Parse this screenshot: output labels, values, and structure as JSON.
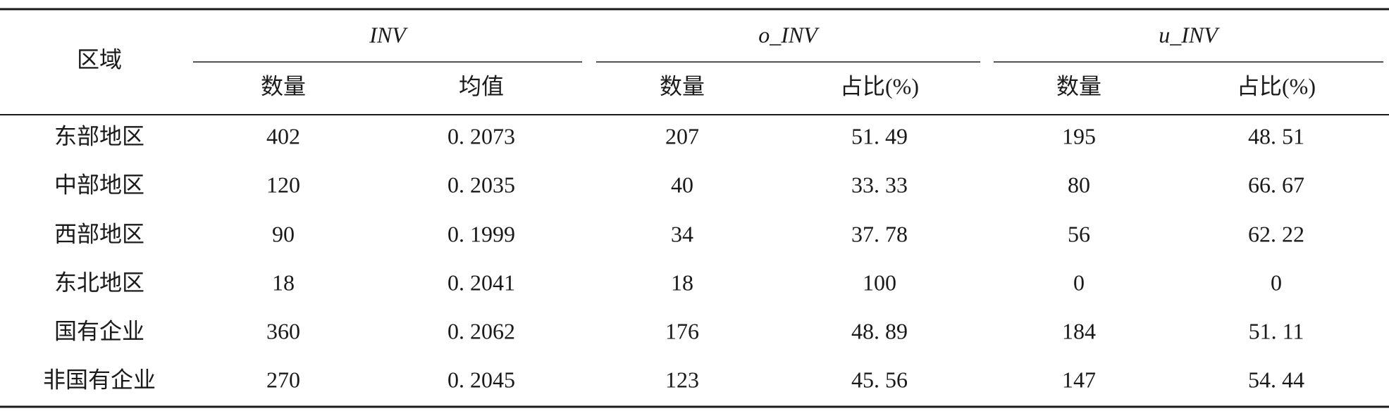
{
  "table": {
    "corner": "区域",
    "groups": [
      "INV",
      "o_INV",
      "u_INV"
    ],
    "subheaders": [
      "数量",
      "均值",
      "数量",
      "占比(%)",
      "数量",
      "占比(%)"
    ],
    "rows": [
      [
        "东部地区",
        "402",
        "0. 2073",
        "207",
        "51. 49",
        "195",
        "48. 51"
      ],
      [
        "中部地区",
        "120",
        "0. 2035",
        "40",
        "33. 33",
        "80",
        "66. 67"
      ],
      [
        "西部地区",
        "90",
        "0. 1999",
        "34",
        "37. 78",
        "56",
        "62. 22"
      ],
      [
        "东北地区",
        "18",
        "0. 2041",
        "18",
        "100",
        "0",
        "0"
      ],
      [
        "国有企业",
        "360",
        "0. 2062",
        "176",
        "48. 89",
        "184",
        "51. 11"
      ],
      [
        "非国有企业",
        "270",
        "0. 2045",
        "123",
        "45. 56",
        "147",
        "54. 44"
      ]
    ]
  }
}
